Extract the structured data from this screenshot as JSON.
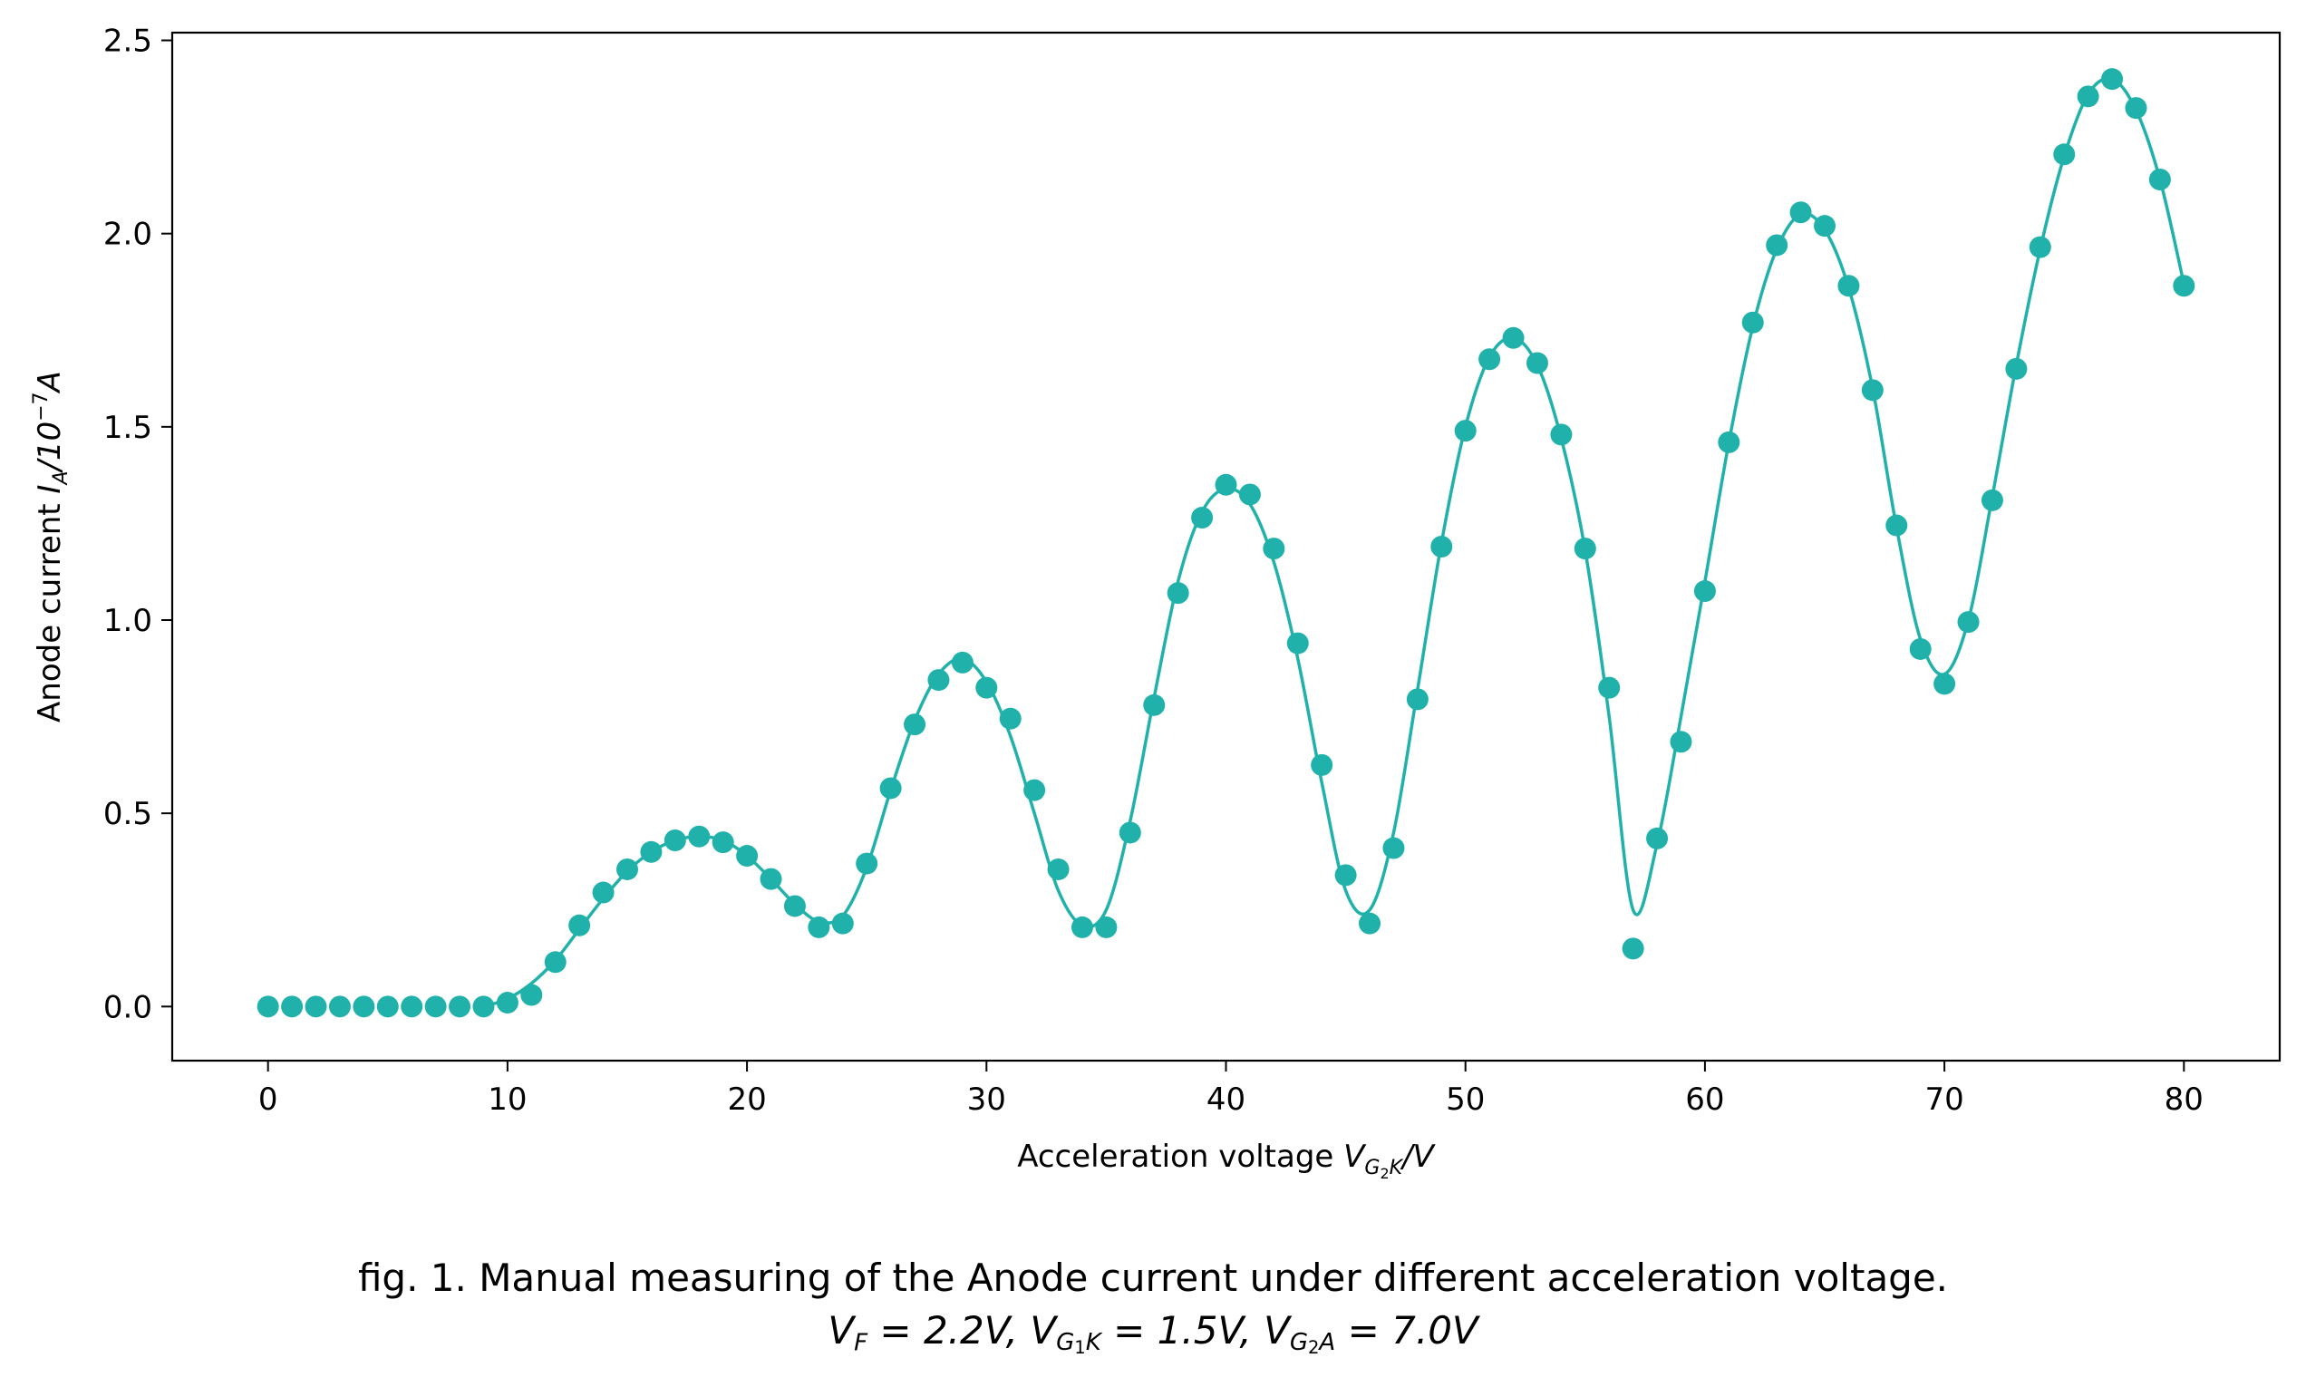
{
  "chart_data": {
    "type": "scatter",
    "xlabel_prefix": "Acceleration voltage ",
    "xlabel_var": "V",
    "xlabel_sub_main": "G",
    "xlabel_sub_index": "2",
    "xlabel_sub_tail": "K",
    "xlabel_unit": "/V",
    "ylabel_prefix": "Anode current ",
    "ylabel_var": "I",
    "ylabel_sub": "A",
    "ylabel_unit_base": "/10",
    "ylabel_unit_exp": "−7",
    "ylabel_unit_tail": "A",
    "xlim": [
      -4,
      84
    ],
    "ylim": [
      -0.14,
      2.52
    ],
    "xticks": [
      0,
      10,
      20,
      30,
      40,
      50,
      60,
      70,
      80
    ],
    "yticks": [
      0.0,
      0.5,
      1.0,
      1.5,
      2.0,
      2.5
    ],
    "ytick_labels": [
      "0.0",
      "0.5",
      "1.0",
      "1.5",
      "2.0",
      "2.5"
    ],
    "color": "#20b2aa",
    "series": [
      {
        "kind": "points",
        "x": [
          0,
          1,
          2,
          3,
          4,
          5,
          6,
          7,
          8,
          9,
          10,
          11,
          12,
          13,
          14,
          15,
          16,
          17,
          18,
          19,
          20,
          21,
          22,
          23,
          24,
          25,
          26,
          27,
          28,
          29,
          30,
          31,
          32,
          33,
          34,
          35,
          36,
          37,
          38,
          39,
          40,
          41,
          42,
          43,
          44,
          45,
          46,
          47,
          48,
          49,
          50,
          51,
          52,
          53,
          54,
          55,
          56,
          57,
          58,
          59,
          60,
          61,
          62,
          63,
          64,
          65,
          66,
          67,
          68,
          69,
          70,
          71,
          72,
          73,
          74,
          75,
          76,
          77,
          78,
          79,
          80
        ],
        "y": [
          0,
          0,
          0,
          0,
          0,
          0,
          0,
          0,
          0,
          0,
          0.01,
          0.03,
          0.115,
          0.21,
          0.295,
          0.355,
          0.4,
          0.43,
          0.44,
          0.425,
          0.39,
          0.33,
          0.26,
          0.205,
          0.215,
          0.37,
          0.565,
          0.73,
          0.845,
          0.89,
          0.825,
          0.745,
          0.56,
          0.355,
          0.205,
          0.205,
          0.45,
          0.78,
          1.07,
          1.265,
          1.35,
          1.325,
          1.185,
          0.94,
          0.625,
          0.34,
          0.215,
          0.41,
          0.795,
          1.19,
          1.49,
          1.675,
          1.73,
          1.665,
          1.48,
          1.185,
          0.825,
          0.15,
          0.435,
          0.685,
          1.075,
          1.46,
          1.77,
          1.97,
          2.055,
          2.02,
          1.865,
          1.595,
          1.245,
          0.925,
          0.835,
          0.995,
          1.31,
          1.65,
          1.965,
          2.205,
          2.355,
          2.4,
          2.325,
          2.14,
          1.865
        ]
      },
      {
        "kind": "fit-curve",
        "x": [
          9,
          10,
          11,
          12,
          13,
          14,
          15,
          16,
          17,
          18,
          19,
          20,
          21,
          22,
          23,
          24,
          25,
          26,
          27,
          28,
          29,
          30,
          31,
          32,
          33,
          34,
          35,
          36,
          37,
          38,
          39,
          40,
          41,
          42,
          43,
          44,
          45,
          46,
          47,
          48,
          49,
          50,
          51,
          52,
          53,
          54,
          55,
          56,
          57,
          58,
          59,
          60,
          61,
          62,
          63,
          64,
          65,
          66,
          67,
          68,
          69,
          70,
          71,
          72,
          73,
          74,
          75,
          76,
          77,
          78,
          79,
          80
        ],
        "y": [
          0,
          0.02,
          0.06,
          0.12,
          0.2,
          0.28,
          0.35,
          0.4,
          0.43,
          0.44,
          0.43,
          0.39,
          0.33,
          0.265,
          0.22,
          0.235,
          0.36,
          0.56,
          0.74,
          0.86,
          0.9,
          0.84,
          0.7,
          0.5,
          0.3,
          0.21,
          0.25,
          0.48,
          0.8,
          1.1,
          1.28,
          1.34,
          1.3,
          1.15,
          0.9,
          0.58,
          0.3,
          0.25,
          0.45,
          0.82,
          1.2,
          1.5,
          1.68,
          1.73,
          1.66,
          1.47,
          1.18,
          0.75,
          0.25,
          0.42,
          0.75,
          1.1,
          1.46,
          1.76,
          1.96,
          2.05,
          2.01,
          1.86,
          1.6,
          1.24,
          0.95,
          0.86,
          1.0,
          1.32,
          1.66,
          1.96,
          2.2,
          2.36,
          2.4,
          2.32,
          2.14,
          1.87
        ]
      }
    ]
  },
  "caption": {
    "line1": "fig. 1. Manual measuring of the Anode current under different acceleration voltage.",
    "f_var": "V",
    "f_sub": "F",
    "f_val": " = 2.2V, ",
    "g1_var": "V",
    "g1_sub_main": "G",
    "g1_sub_index": "1",
    "g1_sub_tail": "K",
    "g1_val": " = 1.5V, ",
    "g2_var": "V",
    "g2_sub_main": "G",
    "g2_sub_index": "2",
    "g2_sub_tail": "A",
    "g2_val": " = 7.0V"
  }
}
